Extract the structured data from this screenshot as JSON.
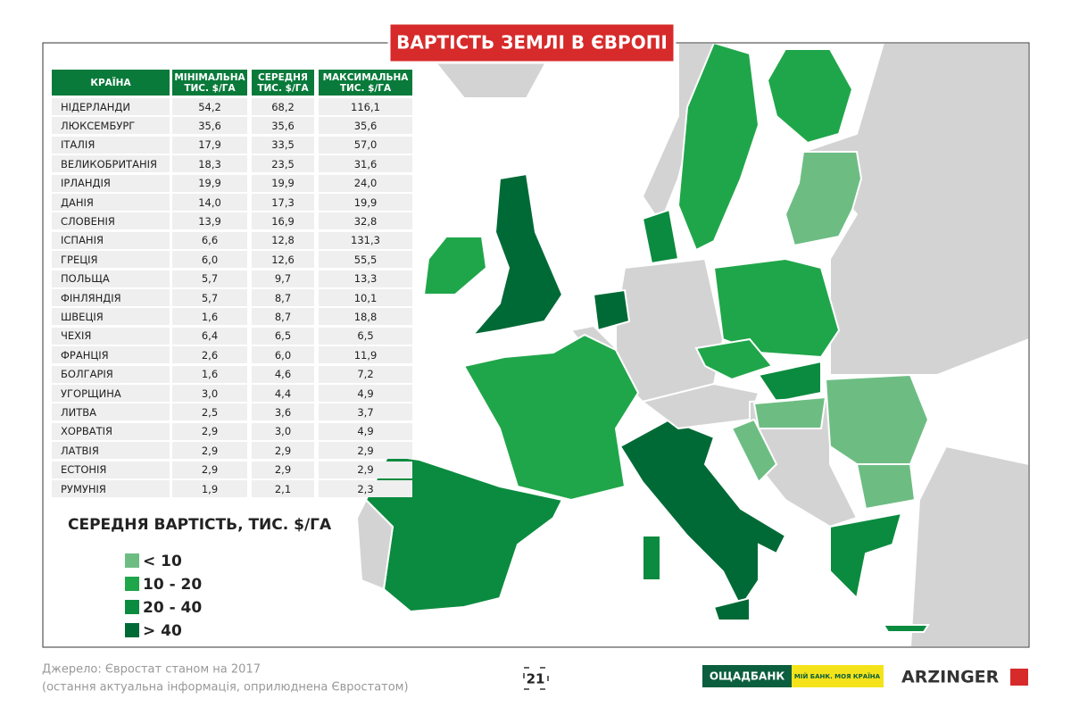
{
  "header": {
    "title": "ВАРТІСТЬ ЗЕМЛІ В ЄВРОПІ"
  },
  "table": {
    "columns": [
      "КРАЇНА",
      "МІНІМАЛЬНА ТИС. $/ГА",
      "СЕРЕДНЯ ТИС. $/ГА",
      "МАКСИМАЛЬНА ТИС. $/ГА"
    ],
    "rows": [
      [
        "НІДЕРЛАНДИ",
        "54,2",
        "68,2",
        "116,1"
      ],
      [
        "ЛЮКСЕМБУРГ",
        "35,6",
        "35,6",
        "35,6"
      ],
      [
        "ІТАЛІЯ",
        "17,9",
        "33,5",
        "57,0"
      ],
      [
        "ВЕЛИКОБРИТАНІЯ",
        "18,3",
        "23,5",
        "31,6"
      ],
      [
        "ІРЛАНДІЯ",
        "19,9",
        "19,9",
        "24,0"
      ],
      [
        "ДАНІЯ",
        "14,0",
        "17,3",
        "19,9"
      ],
      [
        "СЛОВЕНІЯ",
        "13,9",
        "16,9",
        "32,8"
      ],
      [
        "ІСПАНІЯ",
        "6,6",
        "12,8",
        "131,3"
      ],
      [
        "ГРЕЦІЯ",
        "6,0",
        "12,6",
        "55,5"
      ],
      [
        "ПОЛЬЩА",
        "5,7",
        "9,7",
        "13,3"
      ],
      [
        "ФІНЛЯНДІЯ",
        "5,7",
        "8,7",
        "10,1"
      ],
      [
        "ШВЕЦІЯ",
        "1,6",
        "8,7",
        "18,8"
      ],
      [
        "ЧЕХІЯ",
        "6,4",
        "6,5",
        "6,5"
      ],
      [
        "ФРАНЦІЯ",
        "2,6",
        "6,0",
        "11,9"
      ],
      [
        "БОЛГАРІЯ",
        "1,6",
        "4,6",
        "7,2"
      ],
      [
        "УГОРЩИНА",
        "3,0",
        "4,4",
        "4,9"
      ],
      [
        "ЛИТВА",
        "2,5",
        "3,6",
        "3,7"
      ],
      [
        "ХОРВАТІЯ",
        "2,9",
        "3,0",
        "4,9"
      ],
      [
        "ЛАТВІЯ",
        "2,9",
        "2,9",
        "2,9"
      ],
      [
        "ЕСТОНІЯ",
        "2,9",
        "2,9",
        "2,9"
      ],
      [
        "РУМУНІЯ",
        "1,9",
        "2,1",
        "2,3"
      ]
    ]
  },
  "legend": {
    "title": "СЕРЕДНЯ ВАРТІСТЬ, ТИС. $/ГА",
    "items": [
      {
        "label": "< 10",
        "color": "#6dbd83"
      },
      {
        "label": "10 - 20",
        "color": "#20a64a"
      },
      {
        "label": "20 - 40",
        "color": "#0b8b3f"
      },
      {
        "label": "> 40",
        "color": "#006a36"
      }
    ]
  },
  "footer": {
    "source": "Джерело: Євростат станом на 2017",
    "note": "(остання актуальна інформація, оприлюднена Євростатом)",
    "page": "21",
    "bank": "ОЩАДБАНК",
    "slogan": "МІЙ БАНК. МОЯ КРАЇНА",
    "brand": "ARZINGER"
  }
}
